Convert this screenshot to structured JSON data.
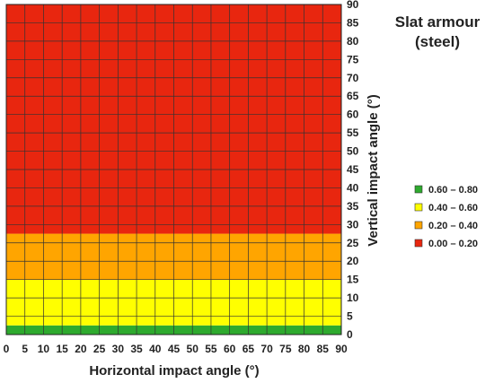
{
  "chart_data": {
    "type": "heatmap",
    "title_lines": [
      "Slat armour",
      "(steel)"
    ],
    "xlabel": "Horizontal impact angle (°)",
    "ylabel": "Vertical impact angle (°)",
    "xlim": [
      0,
      90
    ],
    "ylim": [
      0,
      90
    ],
    "x_ticks": [
      "0",
      "5",
      "10",
      "15",
      "20",
      "25",
      "30",
      "35",
      "40",
      "45",
      "50",
      "55",
      "60",
      "65",
      "70",
      "75",
      "80",
      "85",
      "90"
    ],
    "y_ticks": [
      "0",
      "5",
      "10",
      "15",
      "20",
      "25",
      "30",
      "35",
      "40",
      "45",
      "50",
      "55",
      "60",
      "65",
      "70",
      "75",
      "80",
      "85",
      "90"
    ],
    "grid": true,
    "cell_size_deg": 2.5,
    "legend_position": "right",
    "legend": [
      {
        "label": "0.60 – 0.80",
        "color": "#2eaa2e"
      },
      {
        "label": "0.40 – 0.60",
        "color": "#ffff00"
      },
      {
        "label": "0.20 – 0.40",
        "color": "#ffa500"
      },
      {
        "label": "0.00 – 0.20",
        "color": "#e8260f"
      }
    ],
    "bands": [
      {
        "vertical_range": [
          0,
          2.5
        ],
        "horizontal_range": [
          0,
          90
        ],
        "class": "0.60 – 0.80"
      },
      {
        "vertical_range": [
          2.5,
          15
        ],
        "horizontal_range": [
          0,
          90
        ],
        "class": "0.40 – 0.60"
      },
      {
        "vertical_range": [
          15,
          27.5
        ],
        "horizontal_range": [
          0,
          90
        ],
        "class": "0.20 – 0.40"
      },
      {
        "vertical_range": [
          27.5,
          90
        ],
        "horizontal_range": [
          0,
          90
        ],
        "class": "0.00 – 0.20"
      }
    ]
  }
}
